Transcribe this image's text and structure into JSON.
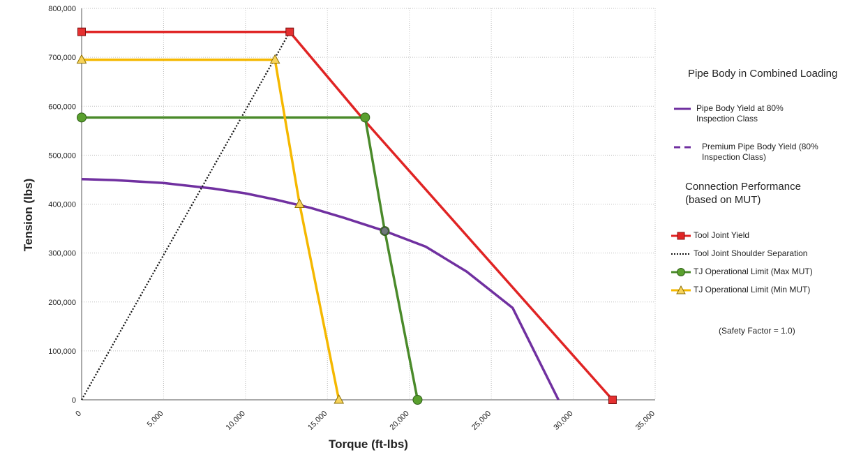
{
  "chart_data": {
    "type": "line",
    "title": "",
    "xlabel": "Torque  (ft-lbs)",
    "ylabel": "Tension  (lbs)",
    "xlim": [
      0,
      35000
    ],
    "ylim": [
      0,
      800000
    ],
    "x_ticks": [
      0,
      5000,
      10000,
      15000,
      20000,
      25000,
      30000,
      35000
    ],
    "x_tick_labels": [
      "0",
      "5,000",
      "10,000",
      "15,000",
      "20,000",
      "25,000",
      "30,000",
      "35,000"
    ],
    "y_ticks": [
      0,
      100000,
      200000,
      300000,
      400000,
      500000,
      600000,
      700000,
      800000
    ],
    "y_tick_labels": [
      "0",
      "100,000",
      "200,000",
      "300,000",
      "400,000",
      "500,000",
      "600,000",
      "700,000",
      "800,000"
    ],
    "grid": true,
    "legend_position": "right",
    "series": [
      {
        "name": "Pipe Body Yield at 80% Inspection Class",
        "color": "#7030a0",
        "style": "solid",
        "marker": "none",
        "x": [
          0,
          2000,
          5000,
          8000,
          10000,
          12000,
          14000,
          16000,
          18500,
          21000,
          23500,
          26300,
          29100
        ],
        "y": [
          451000,
          449000,
          443000,
          432000,
          422000,
          408000,
          392000,
          372000,
          345000,
          313000,
          262000,
          188000,
          0
        ]
      },
      {
        "name": "Tool Joint Yield",
        "color": "#e02424",
        "style": "solid",
        "marker": "square",
        "markers_at": [
          0,
          1,
          3
        ],
        "x": [
          0,
          12700,
          17100,
          32400
        ],
        "y": [
          752000,
          752000,
          577000,
          0
        ]
      },
      {
        "name": "Tool Joint Shoulder Separation",
        "color": "#111111",
        "style": "dotted",
        "marker": "none",
        "x": [
          0,
          12700
        ],
        "y": [
          0,
          752000
        ]
      },
      {
        "name": "TJ Operational Limit (Max MUT)",
        "color": "#4a8a2a",
        "style": "solid",
        "marker": "circle",
        "markers_at": [
          0,
          1,
          2,
          3
        ],
        "x": [
          0,
          17300,
          18500,
          20500
        ],
        "y": [
          577000,
          577000,
          345000,
          0
        ]
      },
      {
        "name": "TJ Operational Limit (Min MUT)",
        "color": "#f5b800",
        "style": "solid",
        "marker": "triangle",
        "markers_at": [
          0,
          1,
          2,
          3
        ],
        "x": [
          0,
          11800,
          13300,
          15700
        ],
        "y": [
          695000,
          695000,
          400000,
          0
        ]
      }
    ]
  },
  "legend": {
    "pipe_heading": "Pipe Body in Combined Loading",
    "pipe_items": [
      {
        "label_1": "Pipe Body Yield at 80%",
        "label_2": "Inspection Class",
        "color": "#7030a0",
        "style": "solid"
      },
      {
        "label_1": "Premium Pipe Body Yield (80%",
        "label_2": "Inspection Class)",
        "color": "#7030a0",
        "style": "dashed"
      }
    ],
    "conn_heading_1": "Connection  Performance",
    "conn_heading_2": "(based  on  MUT)",
    "conn_items": [
      {
        "label": "Tool Joint Yield",
        "color": "#e02424",
        "style": "solid",
        "marker": "square"
      },
      {
        "label": "Tool Joint Shoulder Separation",
        "color": "#111111",
        "style": "dotted",
        "marker": "none"
      },
      {
        "label": "TJ Operational Limit (Max MUT)",
        "color": "#4a8a2a",
        "style": "solid",
        "marker": "circle"
      },
      {
        "label": "TJ Operational Limit (Min MUT)",
        "color": "#f5b800",
        "style": "solid",
        "marker": "triangle"
      }
    ],
    "note": "(Safety Factor = 1.0)"
  }
}
